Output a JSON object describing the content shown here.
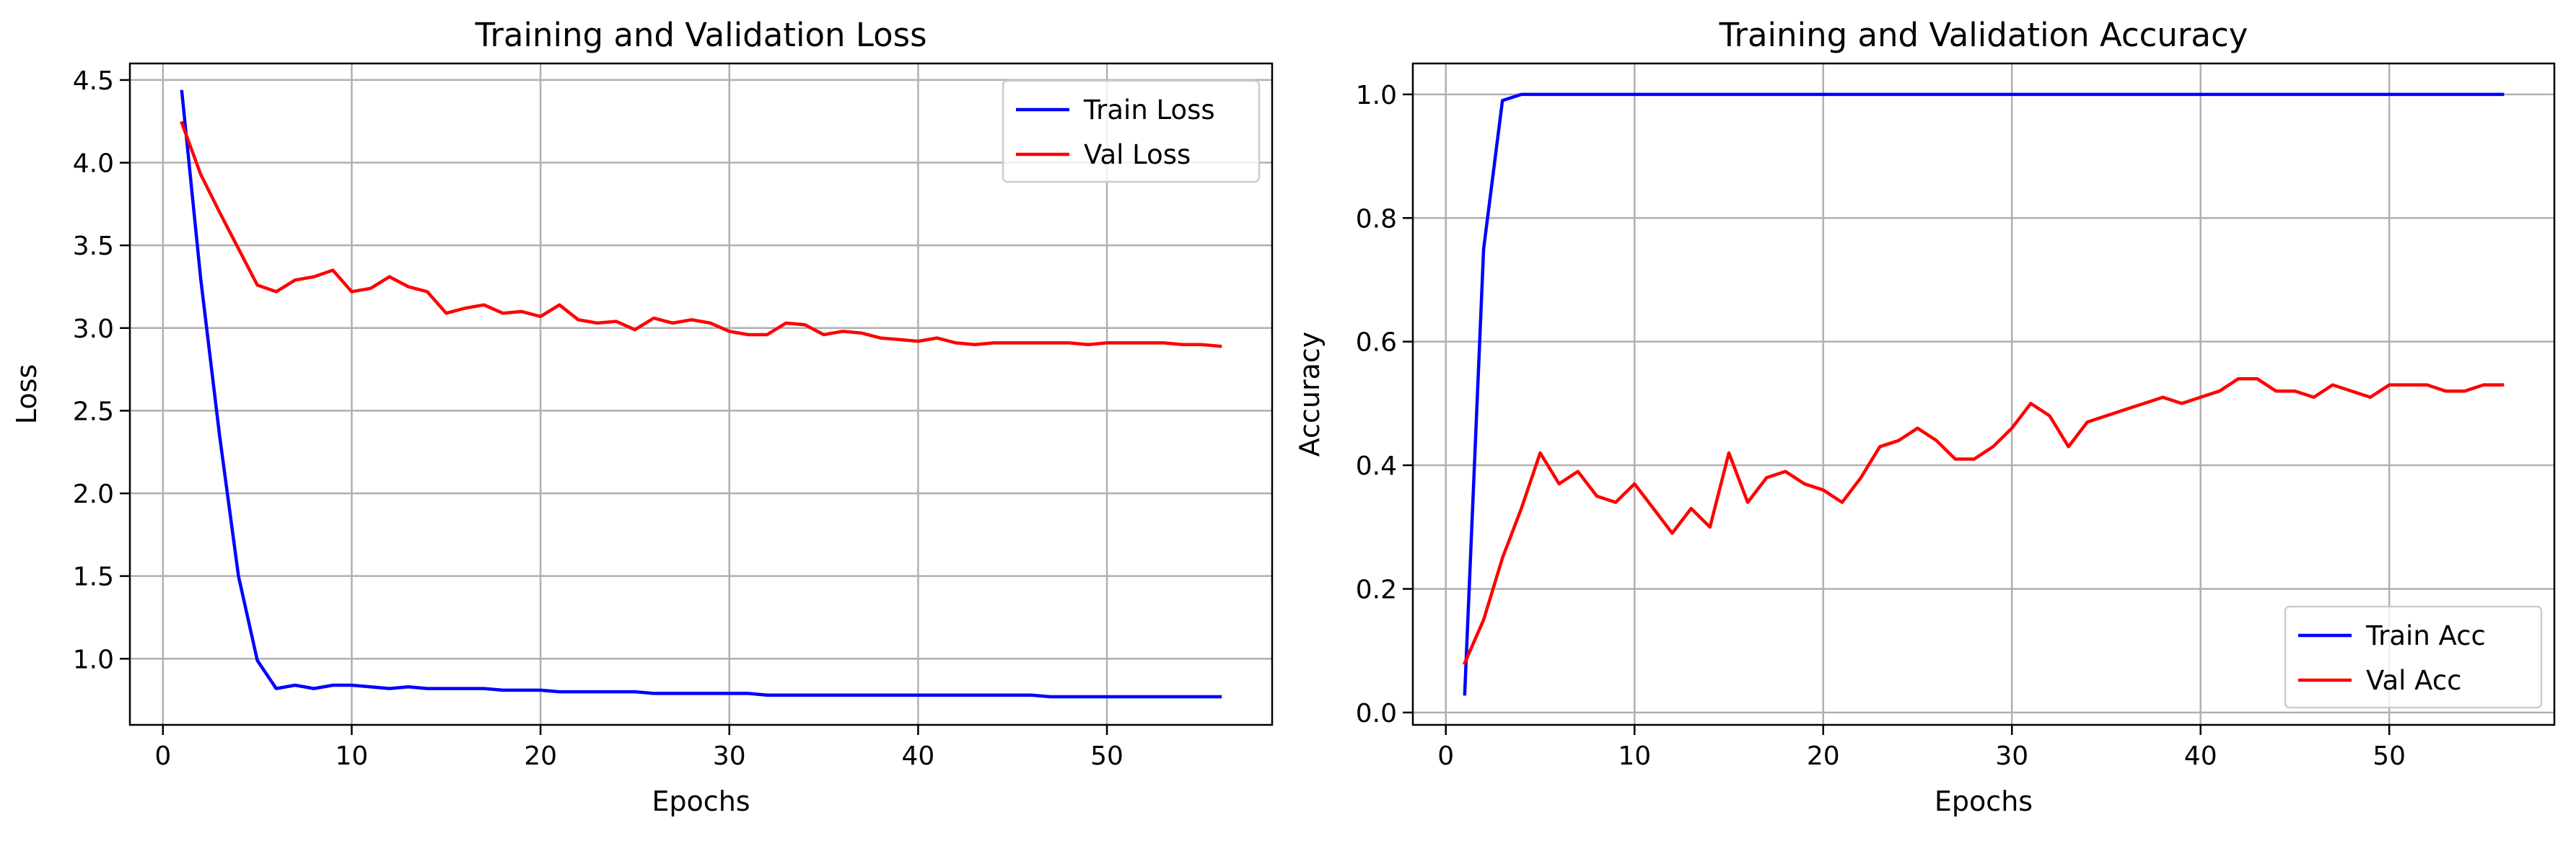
{
  "chart_data": [
    {
      "type": "line",
      "title": "Training and Validation Loss",
      "xlabel": "Epochs",
      "ylabel": "Loss",
      "xlim": [
        -1.75,
        58.75
      ],
      "ylim": [
        0.6,
        4.6
      ],
      "xticks": [
        0,
        10,
        20,
        30,
        40,
        50
      ],
      "yticks": [
        1.0,
        1.5,
        2.0,
        2.5,
        3.0,
        3.5,
        4.0,
        4.5
      ],
      "ytick_labels": [
        "1.0",
        "1.5",
        "2.0",
        "2.5",
        "3.0",
        "3.5",
        "4.0",
        "4.5"
      ],
      "grid": true,
      "legend": "upper right",
      "x": [
        1,
        2,
        3,
        4,
        5,
        6,
        7,
        8,
        9,
        10,
        11,
        12,
        13,
        14,
        15,
        16,
        17,
        18,
        19,
        20,
        21,
        22,
        23,
        24,
        25,
        26,
        27,
        28,
        29,
        30,
        31,
        32,
        33,
        34,
        35,
        36,
        37,
        38,
        39,
        40,
        41,
        42,
        43,
        44,
        45,
        46,
        47,
        48,
        49,
        50,
        51,
        52,
        53,
        54,
        55,
        56
      ],
      "series": [
        {
          "name": "Train Loss",
          "color": "#0000ff",
          "values": [
            4.43,
            3.3,
            2.35,
            1.5,
            0.99,
            0.82,
            0.84,
            0.82,
            0.84,
            0.84,
            0.83,
            0.82,
            0.83,
            0.82,
            0.82,
            0.82,
            0.82,
            0.81,
            0.81,
            0.81,
            0.8,
            0.8,
            0.8,
            0.8,
            0.8,
            0.79,
            0.79,
            0.79,
            0.79,
            0.79,
            0.79,
            0.78,
            0.78,
            0.78,
            0.78,
            0.78,
            0.78,
            0.78,
            0.78,
            0.78,
            0.78,
            0.78,
            0.78,
            0.78,
            0.78,
            0.78,
            0.77,
            0.77,
            0.77,
            0.77,
            0.77,
            0.77,
            0.77,
            0.77,
            0.77,
            0.77
          ]
        },
        {
          "name": "Val Loss",
          "color": "#ff0000",
          "values": [
            4.24,
            3.93,
            3.7,
            3.48,
            3.26,
            3.22,
            3.29,
            3.31,
            3.35,
            3.22,
            3.24,
            3.31,
            3.25,
            3.22,
            3.09,
            3.12,
            3.14,
            3.09,
            3.1,
            3.07,
            3.14,
            3.05,
            3.03,
            3.04,
            2.99,
            3.06,
            3.03,
            3.05,
            3.03,
            2.98,
            2.96,
            2.96,
            3.03,
            3.02,
            2.96,
            2.98,
            2.97,
            2.94,
            2.93,
            2.92,
            2.94,
            2.91,
            2.9,
            2.91,
            2.91,
            2.91,
            2.91,
            2.91,
            2.9,
            2.91,
            2.91,
            2.91,
            2.91,
            2.9,
            2.9,
            2.89
          ]
        }
      ]
    },
    {
      "type": "line",
      "title": "Training and Validation Accuracy",
      "xlabel": "Epochs",
      "ylabel": "Accuracy",
      "xlim": [
        -1.75,
        58.75
      ],
      "ylim": [
        -0.02,
        1.05
      ],
      "xticks": [
        0,
        10,
        20,
        30,
        40,
        50
      ],
      "yticks": [
        0.0,
        0.2,
        0.4,
        0.6,
        0.8,
        1.0
      ],
      "ytick_labels": [
        "0.0",
        "0.2",
        "0.4",
        "0.6",
        "0.8",
        "1.0"
      ],
      "grid": true,
      "legend": "lower right",
      "x": [
        1,
        2,
        3,
        4,
        5,
        6,
        7,
        8,
        9,
        10,
        11,
        12,
        13,
        14,
        15,
        16,
        17,
        18,
        19,
        20,
        21,
        22,
        23,
        24,
        25,
        26,
        27,
        28,
        29,
        30,
        31,
        32,
        33,
        34,
        35,
        36,
        37,
        38,
        39,
        40,
        41,
        42,
        43,
        44,
        45,
        46,
        47,
        48,
        49,
        50,
        51,
        52,
        53,
        54,
        55,
        56
      ],
      "series": [
        {
          "name": "Train Acc",
          "color": "#0000ff",
          "values": [
            0.03,
            0.75,
            0.99,
            1.0,
            1.0,
            1.0,
            1.0,
            1.0,
            1.0,
            1.0,
            1.0,
            1.0,
            1.0,
            1.0,
            1.0,
            1.0,
            1.0,
            1.0,
            1.0,
            1.0,
            1.0,
            1.0,
            1.0,
            1.0,
            1.0,
            1.0,
            1.0,
            1.0,
            1.0,
            1.0,
            1.0,
            1.0,
            1.0,
            1.0,
            1.0,
            1.0,
            1.0,
            1.0,
            1.0,
            1.0,
            1.0,
            1.0,
            1.0,
            1.0,
            1.0,
            1.0,
            1.0,
            1.0,
            1.0,
            1.0,
            1.0,
            1.0,
            1.0,
            1.0,
            1.0,
            1.0
          ]
        },
        {
          "name": "Val Acc",
          "color": "#ff0000",
          "values": [
            0.08,
            0.15,
            0.25,
            0.33,
            0.42,
            0.37,
            0.39,
            0.35,
            0.34,
            0.37,
            0.33,
            0.29,
            0.33,
            0.3,
            0.42,
            0.34,
            0.38,
            0.39,
            0.37,
            0.36,
            0.34,
            0.38,
            0.43,
            0.44,
            0.46,
            0.44,
            0.41,
            0.41,
            0.43,
            0.46,
            0.5,
            0.48,
            0.43,
            0.47,
            0.48,
            0.49,
            0.5,
            0.51,
            0.5,
            0.51,
            0.52,
            0.54,
            0.54,
            0.52,
            0.52,
            0.51,
            0.53,
            0.52,
            0.51,
            0.53,
            0.53,
            0.53,
            0.52,
            0.52,
            0.53,
            0.53
          ]
        }
      ]
    }
  ]
}
